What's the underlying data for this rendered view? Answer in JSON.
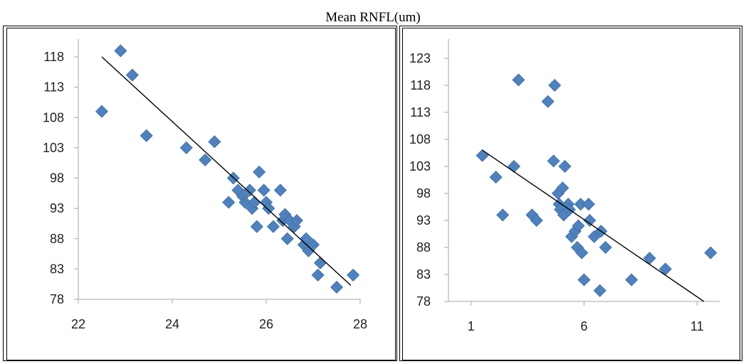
{
  "figure_title": "Mean RNFL(um)",
  "colors": {
    "marker": "#4f81bd",
    "marker_edge": "#3f6fa6",
    "trendline": "#000000",
    "axis": "#a6a6a6"
  },
  "chart_data": [
    {
      "type": "scatter",
      "title": "",
      "xlabel": "",
      "ylabel": "",
      "xlim": [
        22,
        28
      ],
      "ylim": [
        78,
        120
      ],
      "xticks": [
        22,
        24,
        26,
        28
      ],
      "yticks": [
        78,
        83,
        88,
        93,
        98,
        103,
        108,
        113,
        118
      ],
      "grid": false,
      "legend": "none",
      "series": [
        {
          "points": [
            [
              22.5,
              109
            ],
            [
              22.9,
              119
            ],
            [
              23.15,
              115
            ],
            [
              23.45,
              105
            ],
            [
              24.3,
              103
            ],
            [
              24.7,
              101
            ],
            [
              24.9,
              104
            ],
            [
              25.2,
              94
            ],
            [
              25.3,
              98
            ],
            [
              25.4,
              96
            ],
            [
              25.5,
              95
            ],
            [
              25.55,
              94
            ],
            [
              25.65,
              96
            ],
            [
              25.7,
              93
            ],
            [
              25.75,
              94
            ],
            [
              25.8,
              90
            ],
            [
              25.85,
              99
            ],
            [
              25.95,
              96
            ],
            [
              26.0,
              94
            ],
            [
              26.05,
              93
            ],
            [
              26.15,
              90
            ],
            [
              26.3,
              96
            ],
            [
              26.35,
              91
            ],
            [
              26.4,
              92
            ],
            [
              26.45,
              88
            ],
            [
              26.5,
              91
            ],
            [
              26.6,
              90
            ],
            [
              26.65,
              91
            ],
            [
              26.8,
              87
            ],
            [
              26.85,
              88
            ],
            [
              26.9,
              86
            ],
            [
              27.0,
              87
            ],
            [
              27.1,
              82
            ],
            [
              27.15,
              84
            ],
            [
              27.5,
              80
            ],
            [
              27.85,
              82
            ]
          ]
        }
      ],
      "trendline": {
        "x": [
          22.5,
          27.8
        ],
        "y": [
          118,
          80.3
        ]
      }
    },
    {
      "type": "scatter",
      "title": "",
      "xlabel": "",
      "ylabel": "",
      "xlim": [
        0,
        12
      ],
      "ylim": [
        78,
        124
      ],
      "xticks": [
        1,
        6,
        11
      ],
      "yticks": [
        78,
        83,
        88,
        93,
        98,
        103,
        108,
        113,
        118,
        123
      ],
      "grid": false,
      "legend": "none",
      "series": [
        {
          "points": [
            [
              1.5,
              105
            ],
            [
              2.1,
              101
            ],
            [
              2.4,
              94
            ],
            [
              2.9,
              103
            ],
            [
              3.1,
              119
            ],
            [
              3.7,
              94
            ],
            [
              3.9,
              93
            ],
            [
              4.4,
              115
            ],
            [
              4.65,
              104
            ],
            [
              4.7,
              118
            ],
            [
              4.85,
              98
            ],
            [
              4.9,
              96
            ],
            [
              4.95,
              95
            ],
            [
              5.05,
              99
            ],
            [
              5.1,
              94
            ],
            [
              5.15,
              103
            ],
            [
              5.3,
              96
            ],
            [
              5.35,
              95
            ],
            [
              5.45,
              90
            ],
            [
              5.6,
              91
            ],
            [
              5.7,
              88
            ],
            [
              5.75,
              92
            ],
            [
              5.85,
              96
            ],
            [
              5.9,
              87
            ],
            [
              6.0,
              82
            ],
            [
              6.2,
              96
            ],
            [
              6.25,
              93
            ],
            [
              6.45,
              90
            ],
            [
              6.7,
              80
            ],
            [
              6.75,
              91
            ],
            [
              6.95,
              88
            ],
            [
              8.1,
              82
            ],
            [
              8.9,
              86
            ],
            [
              9.6,
              84
            ],
            [
              11.6,
              87
            ]
          ]
        }
      ],
      "trendline": {
        "x": [
          1.5,
          11.3
        ],
        "y": [
          106,
          78
        ]
      }
    }
  ]
}
